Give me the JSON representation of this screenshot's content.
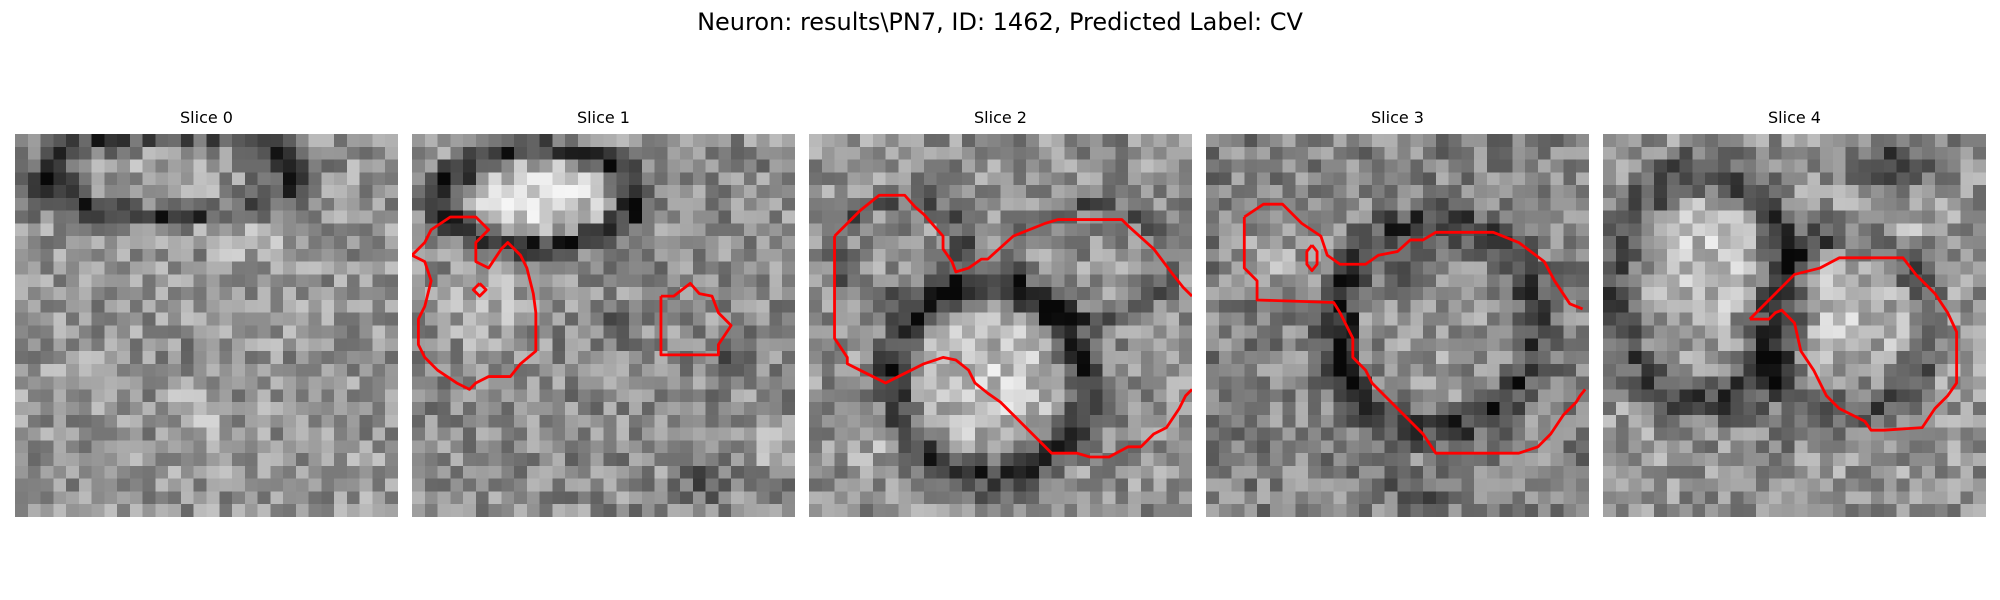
{
  "figure": {
    "title": "Neuron: results\\PN7, ID: 1462, Predicted Label: CV"
  },
  "colors": {
    "contour": "#ff0000",
    "background": "#ffffff"
  },
  "panels": [
    {
      "title": "Slice 0",
      "image": "grayscale electron-microscopy crop",
      "has_contour": false
    },
    {
      "title": "Slice 1",
      "image": "grayscale electron-microscopy crop",
      "has_contour": true
    },
    {
      "title": "Slice 2",
      "image": "grayscale electron-microscopy crop",
      "has_contour": true
    },
    {
      "title": "Slice 3",
      "image": "grayscale electron-microscopy crop",
      "has_contour": true
    },
    {
      "title": "Slice 4",
      "image": "grayscale electron-microscopy crop",
      "has_contour": true
    }
  ]
}
